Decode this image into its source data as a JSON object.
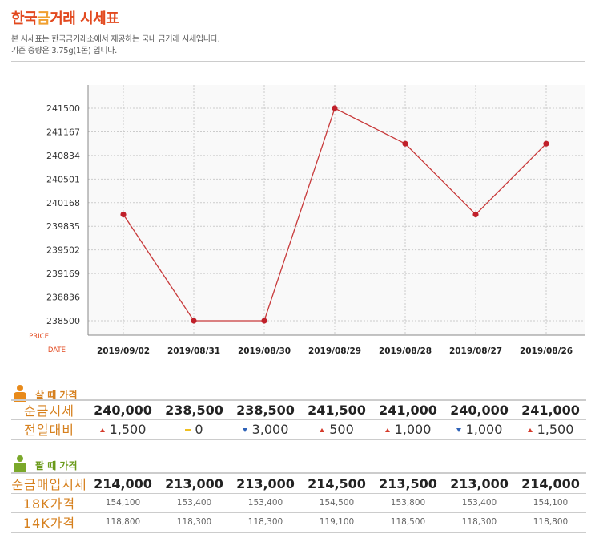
{
  "header": {
    "title_part1": "한국",
    "title_part2": "금",
    "title_part3": "거래 시세표",
    "desc1": "본 시세표는 한국금거래소에서 제공하는 국내 금거래 시세입니다.",
    "desc2": "기준 중량은 3.75g(1돈) 입니다."
  },
  "chart_data": {
    "type": "line",
    "categories": [
      "2019/09/02",
      "2019/08/31",
      "2019/08/30",
      "2019/08/29",
      "2019/08/28",
      "2019/08/27",
      "2019/08/26"
    ],
    "values": [
      240000,
      238500,
      238500,
      241500,
      241000,
      240000,
      241000
    ],
    "yticks": [
      "241500",
      "241167",
      "240834",
      "240501",
      "240168",
      "239835",
      "239502",
      "239169",
      "238836",
      "238500"
    ],
    "ylim": [
      238500,
      241500
    ],
    "ylabel": "PRICE",
    "xlabel": "DATE",
    "line_color": "#c8393a",
    "grid": true
  },
  "buy": {
    "heading": "살 때 가격",
    "icon": "person-icon",
    "icon_color": "#e88a1a",
    "rows": [
      {
        "label": "순금시세",
        "values": [
          "240,000",
          "238,500",
          "238,500",
          "241,500",
          "241,000",
          "240,000",
          "241,000"
        ]
      },
      {
        "label": "전일대비",
        "changes": [
          {
            "dir": "up",
            "value": "1,500"
          },
          {
            "dir": "flat",
            "value": "0"
          },
          {
            "dir": "down",
            "value": "3,000"
          },
          {
            "dir": "up",
            "value": "500"
          },
          {
            "dir": "up",
            "value": "1,000"
          },
          {
            "dir": "down",
            "value": "1,000"
          },
          {
            "dir": "up",
            "value": "1,500"
          }
        ]
      }
    ]
  },
  "sell": {
    "heading": "팔 때 가격",
    "icon": "person-icon",
    "icon_color": "#7aa82a",
    "rows": [
      {
        "label": "순금매입시세",
        "values": [
          "214,000",
          "213,000",
          "213,000",
          "214,500",
          "213,500",
          "213,000",
          "214,000"
        ]
      },
      {
        "label": "18K가격",
        "values": [
          "154,100",
          "153,400",
          "153,400",
          "154,500",
          "153,800",
          "153,400",
          "154,100"
        ]
      },
      {
        "label": "14K가격",
        "values": [
          "118,800",
          "118,300",
          "118,300",
          "119,100",
          "118,500",
          "118,300",
          "118,800"
        ]
      }
    ]
  }
}
